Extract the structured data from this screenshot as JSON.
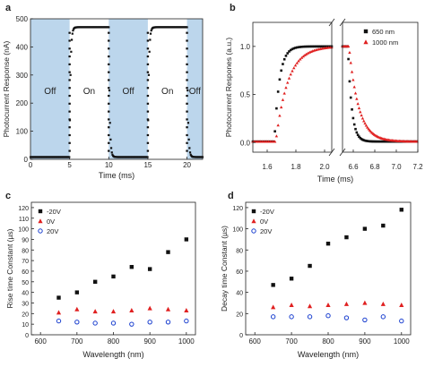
{
  "panels": {
    "a": {
      "letter": "a",
      "xlabel": "Time (ms)",
      "ylabel": "Photocurrent Response (nA)",
      "xticks": [
        "0",
        "5",
        "10",
        "15",
        "20"
      ],
      "yticks": [
        "0",
        "100",
        "200",
        "300",
        "400",
        "500"
      ],
      "state_labels": [
        "Off",
        "On",
        "Off",
        "On",
        "Off"
      ],
      "shade_color": "#bcd6ec",
      "series_color": "#111111"
    },
    "b": {
      "letter": "b",
      "xlabel": "Time (ms)",
      "ylabel": "Photocurrent Respones (a.u.)",
      "xticks": [
        "1.6",
        "1.8",
        "2.0",
        "6.6",
        "6.8",
        "7.0",
        "7.2"
      ],
      "yticks": [
        "0.0",
        "0.5",
        "1.0"
      ],
      "legend": [
        "650 nm",
        "1000 nm"
      ],
      "colors": [
        "#111111",
        "#e02020"
      ]
    },
    "c": {
      "letter": "c",
      "xlabel": "Wavelength (nm)",
      "ylabel": "Rise time Constant (µs)",
      "xticks": [
        "600",
        "700",
        "800",
        "900",
        "1000"
      ],
      "yticks": [
        "0",
        "10",
        "20",
        "30",
        "40",
        "50",
        "60",
        "70",
        "80",
        "90",
        "100",
        "110",
        "120"
      ],
      "legend": [
        "-20V",
        "0V",
        "20V"
      ]
    },
    "d": {
      "letter": "d",
      "xlabel": "Wavelength (nm)",
      "ylabel": "Decay time Constant (µs)",
      "xticks": [
        "600",
        "700",
        "800",
        "900",
        "1000"
      ],
      "yticks": [
        "0",
        "20",
        "40",
        "60",
        "80",
        "100",
        "120"
      ],
      "legend": [
        "-20V",
        "0V",
        "20V"
      ]
    }
  },
  "chart_data": [
    {
      "panel": "a",
      "type": "line",
      "xlabel": "Time (ms)",
      "ylabel": "Photocurrent Response (nA)",
      "xlim": [
        0,
        22
      ],
      "ylim": [
        0,
        500
      ],
      "on_intervals": [
        [
          5,
          10
        ],
        [
          15,
          20
        ]
      ],
      "off_level": 8,
      "on_level": 470,
      "state_labels": [
        "Off",
        "On",
        "Off",
        "On",
        "Off"
      ]
    },
    {
      "panel": "b",
      "type": "scatter",
      "xlabel": "Time (ms)",
      "ylabel": "Photocurrent Respones (a.u.)",
      "ylim": [
        -0.1,
        1.25
      ],
      "x_break": [
        2.05,
        6.5
      ],
      "x_segments": [
        [
          1.5,
          2.05
        ],
        [
          6.5,
          7.2
        ]
      ],
      "series": [
        {
          "name": "650 nm",
          "color": "#111111",
          "rise_start": 1.65,
          "rise_tau": 0.035,
          "fall_start": 6.55,
          "fall_tau": 0.035
        },
        {
          "name": "1000 nm",
          "color": "#e02020",
          "rise_start": 1.66,
          "rise_tau": 0.085,
          "fall_start": 6.56,
          "fall_tau": 0.09
        }
      ]
    },
    {
      "panel": "c",
      "type": "scatter",
      "xlabel": "Wavelength (nm)",
      "ylabel": "Rise time Constant (µs)",
      "xlim": [
        575,
        1025
      ],
      "ylim": [
        0,
        125
      ],
      "x": [
        650,
        700,
        750,
        800,
        850,
        900,
        950,
        1000
      ],
      "series": [
        {
          "name": "-20V",
          "marker": "square",
          "color": "#111111",
          "values": [
            35,
            40,
            50,
            55,
            64,
            62,
            78,
            90
          ]
        },
        {
          "name": "0V",
          "marker": "triangle",
          "color": "#e02020",
          "values": [
            21,
            24,
            22,
            22,
            23,
            25,
            24,
            23
          ]
        },
        {
          "name": "20V",
          "marker": "circle",
          "color": "#1a3fcf",
          "values": [
            13,
            12,
            11,
            11,
            10,
            12,
            12,
            13
          ]
        }
      ]
    },
    {
      "panel": "d",
      "type": "scatter",
      "xlabel": "Wavelength (nm)",
      "ylabel": "Decay time Constant (µs)",
      "xlim": [
        575,
        1025
      ],
      "ylim": [
        0,
        125
      ],
      "x": [
        650,
        700,
        750,
        800,
        850,
        900,
        950,
        1000
      ],
      "series": [
        {
          "name": "-20V",
          "marker": "square",
          "color": "#111111",
          "values": [
            47,
            53,
            65,
            86,
            92,
            100,
            103,
            118
          ]
        },
        {
          "name": "0V",
          "marker": "triangle",
          "color": "#e02020",
          "values": [
            26,
            28,
            27,
            28,
            29,
            30,
            29,
            28
          ]
        },
        {
          "name": "20V",
          "marker": "circle",
          "color": "#1a3fcf",
          "values": [
            17,
            17,
            17,
            18,
            16,
            14,
            17,
            13
          ]
        }
      ]
    }
  ]
}
